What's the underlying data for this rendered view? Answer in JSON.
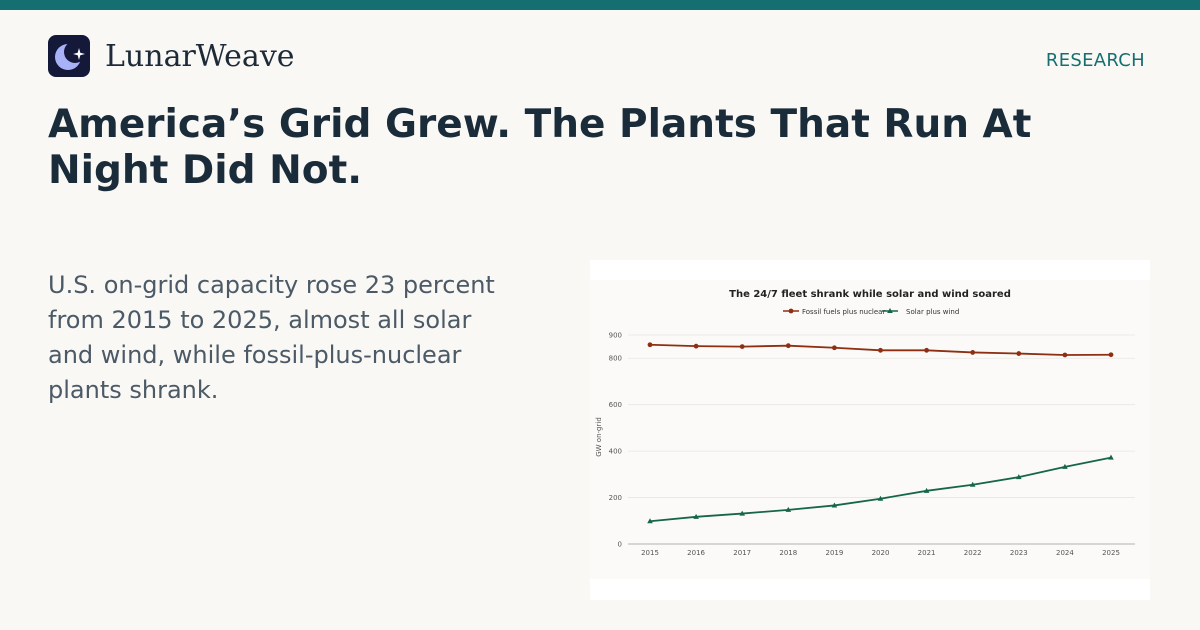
{
  "brand": {
    "name": "LunarWeave"
  },
  "section": {
    "label": "RESEARCH"
  },
  "headline": "America’s Grid Grew. The Plants That Run At Night Did Not.",
  "summary": "U.S. on-grid capacity rose 23 percent from 2015 to 2025, almost all solar and wind, while fossil-plus-nuclear plants shrank.",
  "colors": {
    "accent": "#156f70",
    "fossil": "#8e2f12",
    "solar_wind": "#16664a",
    "logo_bg": "#14193a",
    "moon": "#a8b3f7"
  },
  "icons": {
    "logo": "crescent-moon-sparkle-icon"
  },
  "chart_data": {
    "type": "line",
    "title": "The 24/7 fleet shrank while solar and wind soared",
    "xlabel": "",
    "ylabel": "GW on-grid",
    "x": [
      "2015",
      "2016",
      "2017",
      "2018",
      "2019",
      "2020",
      "2021",
      "2022",
      "2023",
      "2024",
      "2025"
    ],
    "yticks": [
      0,
      200,
      400,
      600,
      800,
      900
    ],
    "ylim": [
      0,
      900
    ],
    "legend_position": "top-center",
    "grid": true,
    "series": [
      {
        "name": "Fossil fuels plus nuclear",
        "marker": "circle",
        "values": [
          858,
          852,
          850,
          854,
          845,
          834,
          834,
          825,
          820,
          814,
          815
        ]
      },
      {
        "name": "Solar plus wind",
        "marker": "triangle",
        "values": [
          98,
          117,
          131,
          147,
          166,
          195,
          229,
          255,
          288,
          332,
          372
        ]
      }
    ]
  }
}
